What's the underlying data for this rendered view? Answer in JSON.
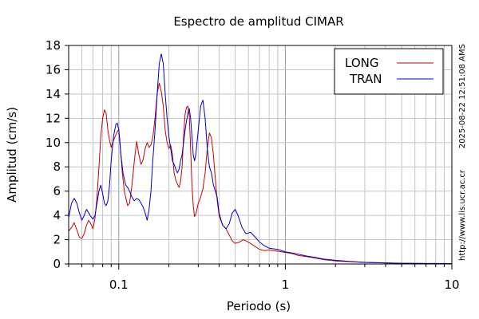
{
  "chart_data": {
    "type": "line",
    "title": "Espectro de amplitud CIMAR",
    "xlabel": "Periodo (s)",
    "ylabel": "Amplitud (cm/s)",
    "xscale": "log",
    "xlim": [
      0.05,
      10
    ],
    "ylim": [
      0,
      18
    ],
    "yticks": [
      "0",
      "2",
      "4",
      "6",
      "8",
      "10",
      "12",
      "14",
      "16",
      "18"
    ],
    "xticks": [
      {
        "value": 0.1,
        "label": "0.1"
      },
      {
        "value": 1,
        "label": "1"
      },
      {
        "value": 10,
        "label": "10"
      }
    ],
    "grid": true,
    "legend_position": "top-right",
    "series": [
      {
        "name": "LONG",
        "color": "#cc0000",
        "points": [
          [
            0.05,
            2.7
          ],
          [
            0.052,
            3.0
          ],
          [
            0.054,
            3.4
          ],
          [
            0.056,
            2.8
          ],
          [
            0.058,
            2.2
          ],
          [
            0.06,
            2.1
          ],
          [
            0.062,
            2.5
          ],
          [
            0.064,
            3.2
          ],
          [
            0.066,
            3.6
          ],
          [
            0.068,
            3.3
          ],
          [
            0.07,
            2.9
          ],
          [
            0.072,
            3.8
          ],
          [
            0.074,
            5.5
          ],
          [
            0.076,
            8.0
          ],
          [
            0.078,
            10.5
          ],
          [
            0.08,
            12.0
          ],
          [
            0.082,
            12.7
          ],
          [
            0.084,
            12.4
          ],
          [
            0.086,
            11.0
          ],
          [
            0.088,
            10.2
          ],
          [
            0.09,
            9.6
          ],
          [
            0.092,
            10.0
          ],
          [
            0.095,
            10.5
          ],
          [
            0.098,
            10.9
          ],
          [
            0.1,
            11.1
          ],
          [
            0.102,
            9.8
          ],
          [
            0.105,
            7.5
          ],
          [
            0.108,
            6.0
          ],
          [
            0.11,
            5.5
          ],
          [
            0.113,
            4.8
          ],
          [
            0.116,
            5.0
          ],
          [
            0.12,
            6.5
          ],
          [
            0.124,
            8.5
          ],
          [
            0.128,
            10.1
          ],
          [
            0.132,
            9.0
          ],
          [
            0.136,
            8.2
          ],
          [
            0.14,
            8.6
          ],
          [
            0.144,
            9.5
          ],
          [
            0.148,
            10.0
          ],
          [
            0.152,
            9.6
          ],
          [
            0.156,
            9.8
          ],
          [
            0.16,
            10.4
          ],
          [
            0.165,
            12.0
          ],
          [
            0.17,
            14.0
          ],
          [
            0.175,
            14.9
          ],
          [
            0.18,
            14.2
          ],
          [
            0.185,
            13.0
          ],
          [
            0.19,
            11.0
          ],
          [
            0.195,
            10.0
          ],
          [
            0.2,
            9.5
          ],
          [
            0.205,
            9.8
          ],
          [
            0.21,
            9.0
          ],
          [
            0.215,
            7.5
          ],
          [
            0.22,
            6.9
          ],
          [
            0.225,
            6.6
          ],
          [
            0.23,
            6.3
          ],
          [
            0.235,
            6.8
          ],
          [
            0.24,
            8.0
          ],
          [
            0.245,
            10.5
          ],
          [
            0.25,
            12.3
          ],
          [
            0.255,
            12.9
          ],
          [
            0.26,
            13.0
          ],
          [
            0.265,
            12.2
          ],
          [
            0.27,
            9.5
          ],
          [
            0.275,
            6.5
          ],
          [
            0.28,
            4.8
          ],
          [
            0.285,
            3.9
          ],
          [
            0.29,
            4.1
          ],
          [
            0.3,
            5.0
          ],
          [
            0.31,
            5.5
          ],
          [
            0.32,
            6.2
          ],
          [
            0.33,
            7.5
          ],
          [
            0.34,
            9.5
          ],
          [
            0.35,
            10.8
          ],
          [
            0.36,
            10.4
          ],
          [
            0.37,
            9.0
          ],
          [
            0.38,
            7.0
          ],
          [
            0.39,
            5.2
          ],
          [
            0.4,
            4.0
          ],
          [
            0.42,
            3.2
          ],
          [
            0.44,
            2.9
          ],
          [
            0.46,
            2.4
          ],
          [
            0.48,
            1.9
          ],
          [
            0.5,
            1.7
          ],
          [
            0.53,
            1.8
          ],
          [
            0.56,
            2.0
          ],
          [
            0.6,
            1.8
          ],
          [
            0.65,
            1.5
          ],
          [
            0.7,
            1.2
          ],
          [
            0.75,
            1.1
          ],
          [
            0.8,
            1.15
          ],
          [
            0.9,
            1.05
          ],
          [
            1.0,
            0.95
          ],
          [
            1.1,
            0.85
          ],
          [
            1.2,
            0.7
          ],
          [
            1.35,
            0.6
          ],
          [
            1.5,
            0.5
          ],
          [
            1.7,
            0.35
          ],
          [
            2.0,
            0.25
          ],
          [
            2.5,
            0.18
          ],
          [
            3.0,
            0.12
          ],
          [
            4.0,
            0.08
          ],
          [
            5.0,
            0.05
          ],
          [
            7.0,
            0.04
          ],
          [
            10.0,
            0.03
          ]
        ]
      },
      {
        "name": "TRAN",
        "color": "#0000cc",
        "points": [
          [
            0.05,
            3.8
          ],
          [
            0.052,
            5.0
          ],
          [
            0.054,
            5.4
          ],
          [
            0.056,
            5.0
          ],
          [
            0.058,
            4.2
          ],
          [
            0.06,
            3.6
          ],
          [
            0.062,
            4.0
          ],
          [
            0.064,
            4.5
          ],
          [
            0.066,
            4.2
          ],
          [
            0.068,
            3.9
          ],
          [
            0.07,
            3.7
          ],
          [
            0.072,
            4.0
          ],
          [
            0.074,
            5.0
          ],
          [
            0.076,
            6.0
          ],
          [
            0.078,
            6.5
          ],
          [
            0.08,
            5.8
          ],
          [
            0.082,
            5.0
          ],
          [
            0.084,
            4.8
          ],
          [
            0.086,
            5.2
          ],
          [
            0.088,
            6.5
          ],
          [
            0.09,
            8.5
          ],
          [
            0.093,
            10.5
          ],
          [
            0.096,
            11.5
          ],
          [
            0.098,
            11.6
          ],
          [
            0.1,
            11.0
          ],
          [
            0.103,
            9.0
          ],
          [
            0.106,
            7.5
          ],
          [
            0.11,
            6.5
          ],
          [
            0.113,
            6.3
          ],
          [
            0.116,
            6.0
          ],
          [
            0.12,
            5.5
          ],
          [
            0.124,
            5.2
          ],
          [
            0.128,
            5.4
          ],
          [
            0.132,
            5.3
          ],
          [
            0.136,
            5.0
          ],
          [
            0.14,
            4.7
          ],
          [
            0.144,
            4.2
          ],
          [
            0.148,
            3.6
          ],
          [
            0.152,
            4.5
          ],
          [
            0.156,
            6.0
          ],
          [
            0.16,
            8.5
          ],
          [
            0.165,
            11.0
          ],
          [
            0.17,
            14.0
          ],
          [
            0.175,
            16.5
          ],
          [
            0.18,
            17.3
          ],
          [
            0.185,
            16.5
          ],
          [
            0.19,
            14.0
          ],
          [
            0.195,
            12.0
          ],
          [
            0.2,
            10.5
          ],
          [
            0.205,
            9.5
          ],
          [
            0.21,
            8.5
          ],
          [
            0.215,
            8.2
          ],
          [
            0.22,
            7.8
          ],
          [
            0.225,
            7.5
          ],
          [
            0.23,
            7.8
          ],
          [
            0.235,
            8.5
          ],
          [
            0.24,
            9.0
          ],
          [
            0.245,
            10.0
          ],
          [
            0.25,
            11.0
          ],
          [
            0.255,
            11.8
          ],
          [
            0.26,
            12.4
          ],
          [
            0.265,
            12.8
          ],
          [
            0.27,
            12.0
          ],
          [
            0.275,
            10.5
          ],
          [
            0.28,
            9.0
          ],
          [
            0.285,
            8.5
          ],
          [
            0.29,
            9.0
          ],
          [
            0.3,
            11.0
          ],
          [
            0.31,
            13.0
          ],
          [
            0.32,
            13.5
          ],
          [
            0.33,
            12.0
          ],
          [
            0.34,
            9.5
          ],
          [
            0.35,
            8.0
          ],
          [
            0.36,
            7.5
          ],
          [
            0.37,
            6.5
          ],
          [
            0.38,
            6.0
          ],
          [
            0.39,
            5.5
          ],
          [
            0.4,
            4.2
          ],
          [
            0.42,
            3.2
          ],
          [
            0.44,
            2.9
          ],
          [
            0.46,
            3.3
          ],
          [
            0.48,
            4.2
          ],
          [
            0.5,
            4.5
          ],
          [
            0.52,
            4.0
          ],
          [
            0.55,
            3.0
          ],
          [
            0.58,
            2.5
          ],
          [
            0.62,
            2.6
          ],
          [
            0.66,
            2.2
          ],
          [
            0.7,
            1.8
          ],
          [
            0.75,
            1.5
          ],
          [
            0.8,
            1.3
          ],
          [
            0.9,
            1.2
          ],
          [
            1.0,
            1.0
          ],
          [
            1.1,
            0.9
          ],
          [
            1.2,
            0.8
          ],
          [
            1.35,
            0.65
          ],
          [
            1.5,
            0.55
          ],
          [
            1.7,
            0.4
          ],
          [
            2.0,
            0.3
          ],
          [
            2.5,
            0.2
          ],
          [
            3.0,
            0.14
          ],
          [
            4.0,
            0.09
          ],
          [
            5.0,
            0.06
          ],
          [
            7.0,
            0.04
          ],
          [
            10.0,
            0.03
          ]
        ]
      }
    ]
  },
  "side_texts": {
    "timestamp": "2025-08-22 12:51:08 AMS",
    "url": "http://www.lis.ucr.ac.cr"
  }
}
